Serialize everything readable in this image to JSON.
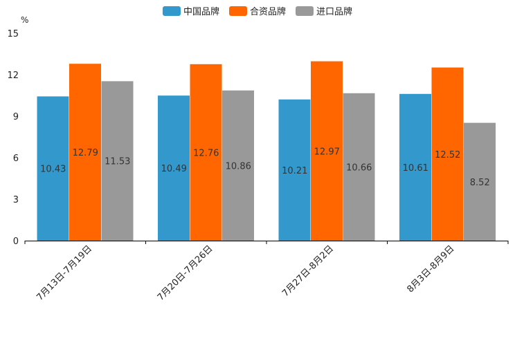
{
  "chart_data": {
    "type": "bar",
    "ylabel": "%",
    "ylim": [
      0,
      15
    ],
    "yticks": [
      0,
      3,
      6,
      9,
      12,
      15
    ],
    "grid": false,
    "legend_position": "top-center",
    "categories": [
      "7月13日-7月19日",
      "7月20日-7月26日",
      "7月27日-8月2日",
      "8月3日-8月9日"
    ],
    "series": [
      {
        "name": "中国品牌",
        "color": "#3399CC",
        "values": [
          10.43,
          10.49,
          10.21,
          10.61
        ],
        "labels": [
          "10.43",
          "10.49",
          "10.21",
          "10.61"
        ]
      },
      {
        "name": "合资品牌",
        "color": "#FF6600",
        "values": [
          12.79,
          12.76,
          12.97,
          12.52
        ],
        "labels": [
          "12.79",
          "12.76",
          "12.97",
          "12.52"
        ]
      },
      {
        "name": "进口品牌",
        "color": "#999999",
        "values": [
          11.53,
          10.86,
          10.66,
          8.52
        ],
        "labels": [
          "11.53",
          "10.86",
          "10.66",
          "8.52"
        ]
      }
    ]
  }
}
